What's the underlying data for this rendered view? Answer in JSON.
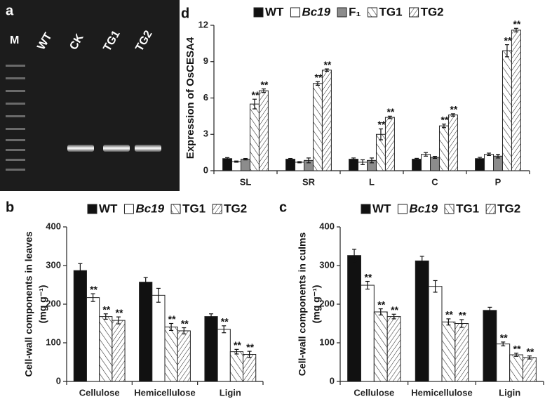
{
  "gel": {
    "panel": "a",
    "lanes": [
      "M",
      "WT",
      "CK",
      "TG1",
      "TG2"
    ]
  },
  "chart_data": [
    {
      "type": "bar",
      "panel": "d",
      "ylabel": "Expression of OsCESA4",
      "categories": [
        "SL",
        "SR",
        "L",
        "C",
        "P"
      ],
      "ylim": [
        0,
        12
      ],
      "yticks": [
        0,
        3,
        6,
        9,
        12
      ],
      "series": [
        {
          "name": "WT",
          "color": "#111111",
          "values": [
            1.0,
            0.95,
            0.95,
            0.95,
            1.0
          ],
          "errors": [
            0.08,
            0.06,
            0.1,
            0.07,
            0.1
          ]
        },
        {
          "name": "Bc19",
          "color": "#ffffff",
          "italic": true,
          "values": [
            0.75,
            0.7,
            0.7,
            1.35,
            1.35
          ],
          "errors": [
            0.05,
            0.05,
            0.2,
            0.15,
            0.1
          ]
        },
        {
          "name": "F₁",
          "color": "#8c8c8c",
          "values": [
            0.95,
            0.85,
            0.85,
            1.1,
            1.2
          ],
          "errors": [
            0.06,
            0.2,
            0.2,
            0.08,
            0.15
          ]
        },
        {
          "name": "TG1",
          "color": "#ffffff",
          "pattern": "back",
          "values": [
            5.5,
            7.2,
            3.0,
            3.7,
            9.9
          ],
          "errors": [
            0.4,
            0.15,
            0.45,
            0.15,
            0.5
          ],
          "annotations": [
            "**",
            "**",
            "**",
            "**",
            "**"
          ]
        },
        {
          "name": "TG2",
          "color": "#ffffff",
          "pattern": "forward",
          "values": [
            6.6,
            8.3,
            4.4,
            4.6,
            11.6
          ],
          "errors": [
            0.15,
            0.1,
            0.1,
            0.1,
            0.15
          ],
          "annotations": [
            "**",
            "**",
            "**",
            "**",
            "**"
          ]
        }
      ]
    },
    {
      "type": "bar",
      "panel": "b",
      "ylabel": [
        "Cell-wall components in leaves",
        "(mg g⁻¹)"
      ],
      "categories": [
        "Cellulose",
        "Hemicellulose",
        "Ligin"
      ],
      "ylim": [
        0,
        400
      ],
      "yticks": [
        0,
        100,
        200,
        300,
        400
      ],
      "series": [
        {
          "name": "WT",
          "color": "#111111",
          "values": [
            287,
            257,
            168
          ],
          "errors": [
            18,
            12,
            7
          ]
        },
        {
          "name": "Bc19",
          "color": "#ffffff",
          "italic": true,
          "values": [
            217,
            223,
            135
          ],
          "errors": [
            10,
            18,
            9
          ],
          "annotations": [
            "**",
            null,
            "**"
          ]
        },
        {
          "name": "TG1",
          "color": "#ffffff",
          "pattern": "back",
          "values": [
            168,
            141,
            77
          ],
          "errors": [
            7,
            9,
            6
          ],
          "annotations": [
            "**",
            "**",
            "**"
          ]
        },
        {
          "name": "TG2",
          "color": "#ffffff",
          "pattern": "forward",
          "values": [
            158,
            131,
            70
          ],
          "errors": [
            9,
            8,
            8
          ],
          "annotations": [
            "**",
            "**",
            "**"
          ]
        }
      ]
    },
    {
      "type": "bar",
      "panel": "c",
      "ylabel": [
        "Cell-wall components in culms",
        "(mg g⁻¹)"
      ],
      "categories": [
        "Cellulose",
        "Hemicellulose",
        "Ligin"
      ],
      "ylim": [
        0,
        400
      ],
      "yticks": [
        0,
        100,
        200,
        300,
        400
      ],
      "series": [
        {
          "name": "WT",
          "color": "#111111",
          "values": [
            326,
            312,
            184
          ],
          "errors": [
            16,
            12,
            8
          ]
        },
        {
          "name": "Bc19",
          "color": "#ffffff",
          "italic": true,
          "values": [
            249,
            246,
            97
          ],
          "errors": [
            10,
            15,
            5
          ],
          "annotations": [
            "**",
            null,
            "**"
          ]
        },
        {
          "name": "TG1",
          "color": "#ffffff",
          "pattern": "back",
          "values": [
            180,
            154,
            69
          ],
          "errors": [
            8,
            8,
            4
          ],
          "annotations": [
            "**",
            "**",
            "**"
          ]
        },
        {
          "name": "TG2",
          "color": "#ffffff",
          "pattern": "forward",
          "values": [
            168,
            150,
            62
          ],
          "errors": [
            6,
            10,
            4
          ],
          "annotations": [
            "**",
            "**",
            "**"
          ]
        }
      ]
    }
  ]
}
